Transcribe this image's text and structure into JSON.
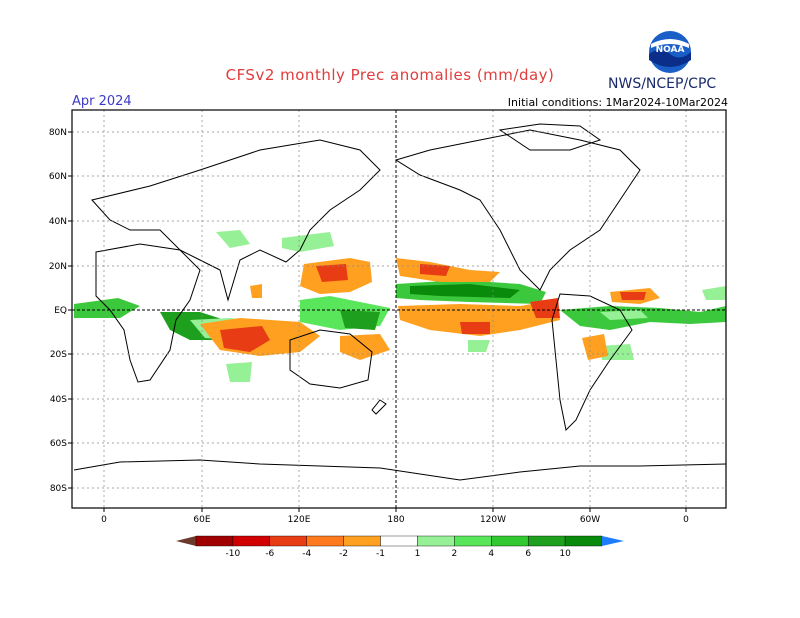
{
  "header": {
    "title": "CFSv2 monthly Prec anomalies (mm/day)",
    "month": "Apr 2024",
    "initial_conditions": "Initial conditions: 1Mar2024-10Mar2024",
    "agency": "NWS/NCEP/CPC",
    "logo_text": "NOAA",
    "logo_icon": "noaa-logo-icon"
  },
  "map": {
    "lat_labels": [
      "80N",
      "60N",
      "40N",
      "20N",
      "EQ",
      "20S",
      "40S",
      "60S",
      "80S"
    ],
    "lon_labels": [
      "0",
      "60E",
      "120E",
      "180",
      "120W",
      "60W",
      "0"
    ],
    "grid": true,
    "colors": {
      "dry": "#e8401c",
      "wet": "#3cc83c"
    }
  },
  "colorbar": {
    "tick_labels": [
      "-10",
      "-6",
      "-4",
      "-2",
      "-1",
      "1",
      "2",
      "4",
      "6",
      "10"
    ],
    "colors": [
      "#6b3a2a",
      "#a00000",
      "#d00000",
      "#e83c14",
      "#ff7a1e",
      "#ffa020",
      "#ffffff",
      "#96f096",
      "#5ae65a",
      "#32c832",
      "#1ea01e",
      "#0a8a0a",
      "#1e7cff"
    ]
  }
}
